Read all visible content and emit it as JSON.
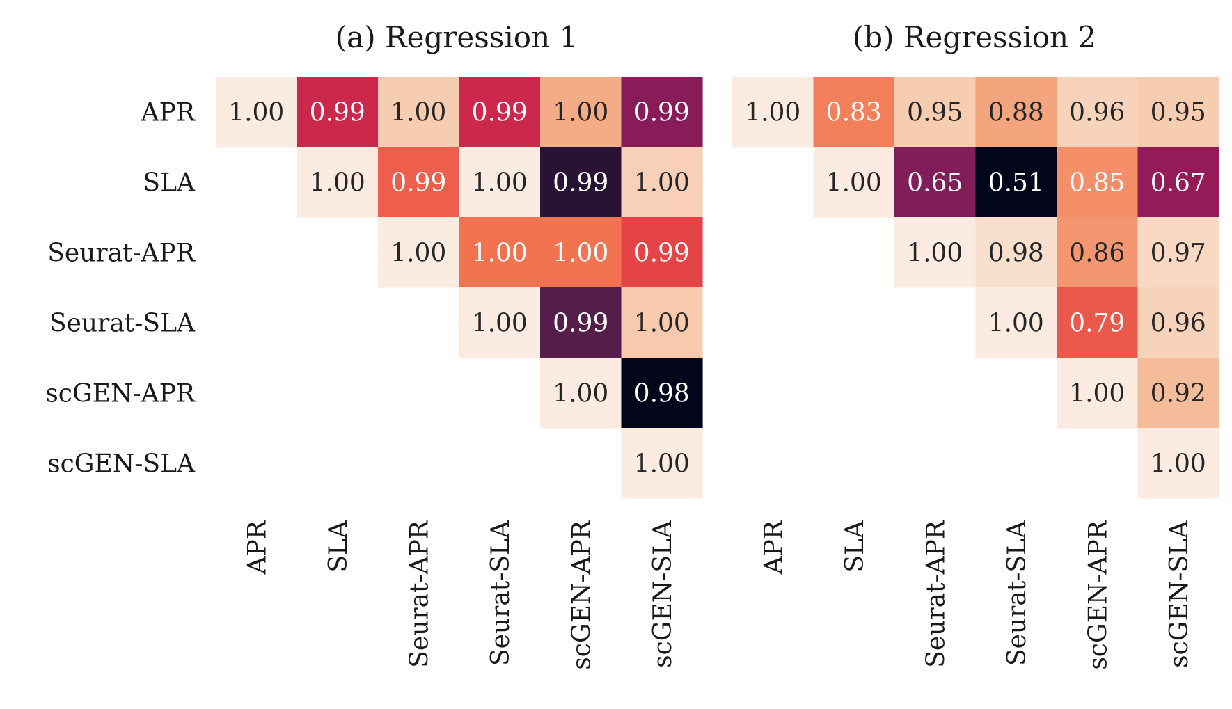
{
  "chart_data": [
    {
      "type": "heatmap",
      "title": "(a) Regression 1",
      "xlabel": "",
      "ylabel": "",
      "categories": [
        "APR",
        "SLA",
        "Seurat-APR",
        "Seurat-SLA",
        "scGEN-APR",
        "scGEN-SLA"
      ],
      "values": [
        [
          1.0,
          0.99,
          1.0,
          0.99,
          1.0,
          0.99
        ],
        [
          null,
          1.0,
          0.99,
          1.0,
          0.99,
          1.0
        ],
        [
          null,
          null,
          1.0,
          1.0,
          1.0,
          0.99
        ],
        [
          null,
          null,
          null,
          1.0,
          0.99,
          1.0
        ],
        [
          null,
          null,
          null,
          null,
          1.0,
          0.98
        ],
        [
          null,
          null,
          null,
          null,
          null,
          1.0
        ]
      ],
      "labels": [
        [
          "1.00",
          "0.99",
          "1.00",
          "0.99",
          "1.00",
          "0.99"
        ],
        [
          null,
          "1.00",
          "0.99",
          "1.00",
          "0.99",
          "1.00"
        ],
        [
          null,
          null,
          "1.00",
          "1.00",
          "1.00",
          "0.99"
        ],
        [
          null,
          null,
          null,
          "1.00",
          "0.99",
          "1.00"
        ],
        [
          null,
          null,
          null,
          null,
          "1.00",
          "0.98"
        ],
        [
          null,
          null,
          null,
          null,
          null,
          "1.00"
        ]
      ],
      "shade": [
        [
          0.0,
          0.55,
          0.1,
          0.55,
          0.22,
          0.7
        ],
        [
          null,
          0.0,
          0.42,
          0.0,
          0.92,
          0.09
        ],
        [
          null,
          null,
          0.0,
          0.38,
          0.38,
          0.47
        ],
        [
          null,
          null,
          null,
          0.0,
          0.82,
          0.11
        ],
        [
          null,
          null,
          null,
          null,
          0.0,
          1.0
        ],
        [
          null,
          null,
          null,
          null,
          null,
          0.0
        ]
      ],
      "colorbar": false
    },
    {
      "type": "heatmap",
      "title": "(b) Regression 2",
      "xlabel": "",
      "ylabel": "",
      "categories": [
        "APR",
        "SLA",
        "Seurat-APR",
        "Seurat-SLA",
        "scGEN-APR",
        "scGEN-SLA"
      ],
      "values": [
        [
          1.0,
          0.83,
          0.95,
          0.88,
          0.96,
          0.95
        ],
        [
          null,
          1.0,
          0.65,
          0.51,
          0.85,
          0.67
        ],
        [
          null,
          null,
          1.0,
          0.98,
          0.86,
          0.97
        ],
        [
          null,
          null,
          null,
          1.0,
          0.79,
          0.96
        ],
        [
          null,
          null,
          null,
          null,
          1.0,
          0.92
        ],
        [
          null,
          null,
          null,
          null,
          null,
          1.0
        ]
      ],
      "labels": [
        [
          "1.00",
          "0.83",
          "0.95",
          "0.88",
          "0.96",
          "0.95"
        ],
        [
          null,
          "1.00",
          "0.65",
          "0.51",
          "0.85",
          "0.67"
        ],
        [
          null,
          null,
          "1.00",
          "0.98",
          "0.86",
          "0.97"
        ],
        [
          null,
          null,
          null,
          "1.00",
          "0.79",
          "0.96"
        ],
        [
          null,
          null,
          null,
          null,
          "1.00",
          "0.92"
        ],
        [
          null,
          null,
          null,
          null,
          null,
          "1.00"
        ]
      ],
      "colorbar": false
    }
  ],
  "colors": {
    "scale": [
      "#fbebe0",
      "#f6c6a7",
      "#f4a47c",
      "#f37651",
      "#e13342",
      "#ad1759",
      "#701f57",
      "#3f1b44",
      "#03051a"
    ],
    "label_light": "#ffffff",
    "label_dark": "#262626",
    "text": "#1a1a1a"
  }
}
